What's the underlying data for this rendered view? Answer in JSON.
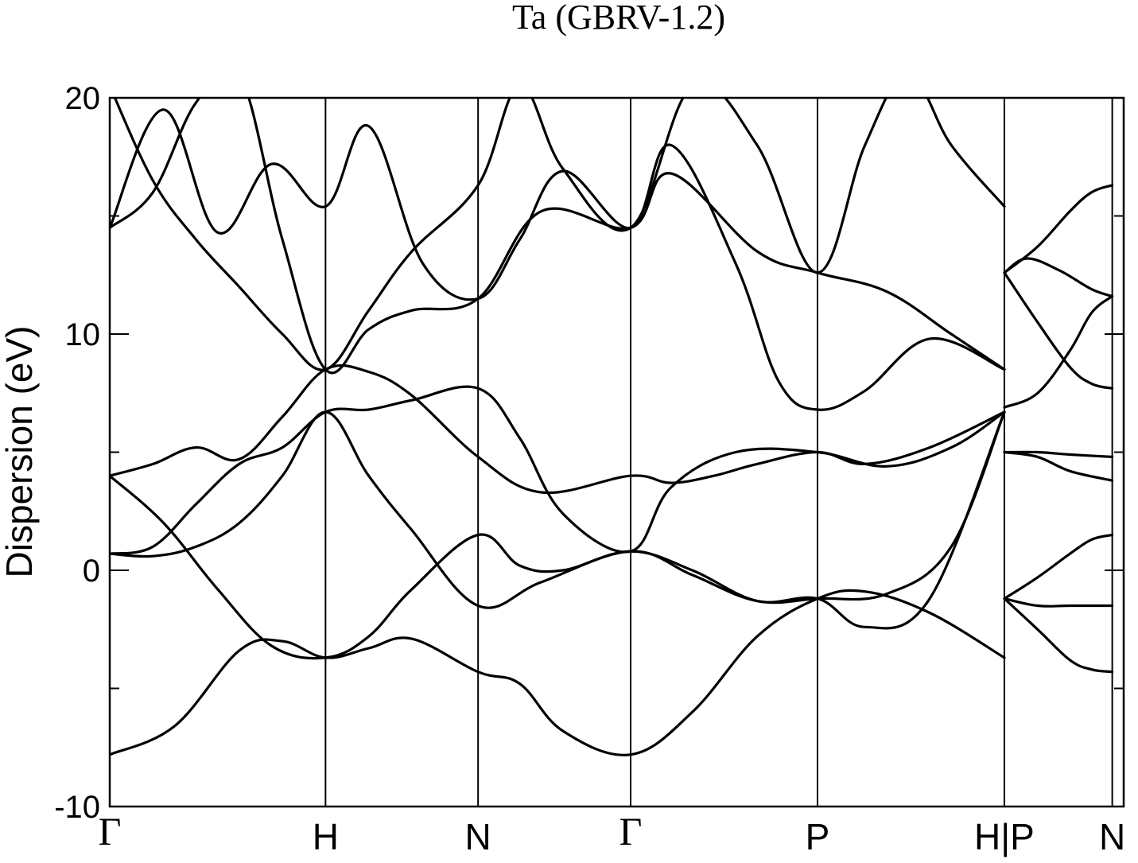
{
  "chart_data": {
    "type": "line",
    "title": "Ta (GBRV-1.2)",
    "xlabel": "",
    "ylabel": "Dispersion (eV)",
    "ylim": [
      -10,
      20
    ],
    "yticks": [
      "20",
      "10",
      "0",
      "-10"
    ],
    "ytick_values": [
      20,
      10,
      0,
      -10
    ],
    "minor_ytick_values": [
      15,
      5,
      -5
    ],
    "grid": false,
    "legend": "none",
    "line_color": "#000000",
    "background": "#ffffff",
    "xlim": [
      0,
      4.699
    ],
    "high_symmetry_points": [
      {
        "label": "Γ",
        "x": 0.0
      },
      {
        "label": "H",
        "x": 1.0
      },
      {
        "label": "N",
        "x": 1.707
      },
      {
        "label": "Γ",
        "x": 2.414
      },
      {
        "label": "P",
        "x": 3.28
      },
      {
        "label": "H|P",
        "x": 4.146
      },
      {
        "label": "N",
        "x": 4.646
      }
    ],
    "path_breaks": [
      4.146
    ],
    "bands": [
      {
        "x": [
          0,
          0.3,
          0.6,
          0.8,
          1.0,
          1.2,
          1.4,
          1.707,
          1.9,
          2.1,
          2.414,
          2.7,
          3.0,
          3.28,
          3.5,
          3.8,
          4.146
        ],
        "y": [
          -7.8,
          -6.6,
          -3.4,
          -3.0,
          -3.7,
          -3.3,
          -2.9,
          -4.3,
          -4.8,
          -6.8,
          -7.8,
          -6.0,
          -2.8,
          -1.2,
          -0.9,
          -1.8,
          -3.7
        ]
      },
      {
        "x": [
          0,
          0.25,
          0.5,
          0.75,
          1.0,
          1.2,
          1.4,
          1.707,
          1.9,
          2.1,
          2.414,
          2.7,
          3.0,
          3.28,
          3.5,
          3.8,
          4.146
        ],
        "y": [
          4.0,
          2.0,
          -0.8,
          -3.2,
          -3.7,
          -2.8,
          -0.8,
          1.5,
          0.2,
          0.0,
          0.8,
          0.0,
          -1.3,
          -1.2,
          -2.4,
          -1.2,
          6.7
        ]
      },
      {
        "x": [
          0,
          0.2,
          0.4,
          0.6,
          0.8,
          1.0,
          1.2,
          1.4,
          1.707,
          2.0,
          2.414,
          2.7,
          3.0,
          3.28,
          3.6,
          3.9,
          4.146
        ],
        "y": [
          0.7,
          0.6,
          1.0,
          2.0,
          4.0,
          6.7,
          4.0,
          1.7,
          -1.5,
          -0.5,
          0.8,
          -0.2,
          -1.3,
          -1.2,
          -1.0,
          1.0,
          6.7
        ]
      },
      {
        "x": [
          0,
          0.2,
          0.4,
          0.6,
          0.8,
          1.0,
          1.2,
          1.4,
          1.707,
          1.9,
          2.1,
          2.414,
          2.6,
          2.9,
          3.28,
          3.6,
          3.9,
          4.146
        ],
        "y": [
          0.7,
          1.0,
          2.8,
          4.5,
          5.2,
          6.7,
          6.8,
          7.2,
          7.7,
          5.6,
          2.4,
          0.8,
          3.5,
          5.0,
          5.0,
          4.4,
          5.2,
          6.7
        ]
      },
      {
        "x": [
          0,
          0.2,
          0.4,
          0.6,
          0.8,
          1.0,
          1.2,
          1.4,
          1.707,
          2.0,
          2.414,
          2.6,
          2.8,
          3.0,
          3.28,
          3.5,
          3.8,
          4.146
        ],
        "y": [
          4.0,
          4.5,
          5.2,
          4.7,
          6.5,
          8.5,
          8.4,
          7.4,
          4.8,
          3.3,
          4.0,
          3.7,
          4.0,
          4.5,
          5.0,
          4.5,
          5.2,
          6.7
        ]
      },
      {
        "x": [
          0,
          0.2,
          0.4,
          0.6,
          0.8,
          1.0,
          1.2,
          1.4,
          1.707,
          2.0,
          2.414,
          2.6,
          3.0,
          3.28,
          3.6,
          3.9,
          4.146
        ],
        "y": [
          14.5,
          16.0,
          19.8,
          21.0,
          14.0,
          8.5,
          10.2,
          11.0,
          11.5,
          15.2,
          14.5,
          16.8,
          13.5,
          12.6,
          11.8,
          10.0,
          8.5
        ]
      },
      {
        "x": [
          0,
          0.25,
          0.5,
          0.75,
          1.0,
          1.2,
          1.45,
          1.707,
          1.9,
          2.1,
          2.414,
          2.6,
          2.9,
          3.1,
          3.28,
          3.5,
          3.8,
          4.146
        ],
        "y": [
          14.5,
          19.5,
          14.3,
          17.2,
          15.4,
          18.8,
          13.0,
          11.5,
          14.0,
          16.9,
          14.5,
          18.0,
          13.0,
          8.0,
          6.8,
          7.6,
          9.8,
          8.5
        ]
      },
      {
        "x": [
          0,
          0.2,
          0.4,
          0.6,
          0.8,
          1.0,
          1.2,
          1.4,
          1.707,
          1.9,
          2.1,
          2.414,
          2.7,
          3.0,
          3.28,
          3.5,
          3.7,
          3.9,
          4.146
        ],
        "y": [
          20.5,
          16.5,
          14.0,
          12.0,
          10.0,
          8.5,
          11.0,
          13.5,
          16.3,
          20.5,
          17.0,
          14.5,
          20.5,
          18.0,
          12.6,
          18.0,
          21.0,
          18.0,
          15.4
        ]
      },
      {
        "x": [
          4.146,
          4.25,
          4.4,
          4.55,
          4.646
        ],
        "y": [
          12.6,
          13.2,
          12.7,
          11.9,
          11.6
        ]
      },
      {
        "x": [
          4.146,
          4.3,
          4.45,
          4.55,
          4.646
        ],
        "y": [
          12.6,
          10.5,
          8.6,
          7.9,
          7.7
        ]
      },
      {
        "x": [
          4.146,
          4.3,
          4.45,
          4.55,
          4.646
        ],
        "y": [
          6.9,
          7.5,
          9.3,
          10.9,
          11.6
        ]
      },
      {
        "x": [
          4.146,
          4.3,
          4.45,
          4.55,
          4.646
        ],
        "y": [
          12.6,
          13.7,
          15.2,
          16.0,
          16.3
        ]
      },
      {
        "x": [
          4.146,
          4.3,
          4.45,
          4.646
        ],
        "y": [
          5.0,
          5.0,
          4.9,
          4.8
        ]
      },
      {
        "x": [
          4.146,
          4.3,
          4.45,
          4.646
        ],
        "y": [
          5.0,
          4.8,
          4.2,
          3.8
        ]
      },
      {
        "x": [
          4.146,
          4.3,
          4.45,
          4.55,
          4.646
        ],
        "y": [
          -1.2,
          -0.3,
          0.7,
          1.3,
          1.5
        ]
      },
      {
        "x": [
          4.146,
          4.3,
          4.45,
          4.646
        ],
        "y": [
          -1.2,
          -1.5,
          -1.5,
          -1.5
        ]
      },
      {
        "x": [
          4.146,
          4.3,
          4.45,
          4.55,
          4.646
        ],
        "y": [
          -1.2,
          -2.5,
          -3.8,
          -4.2,
          -4.3
        ]
      }
    ]
  }
}
